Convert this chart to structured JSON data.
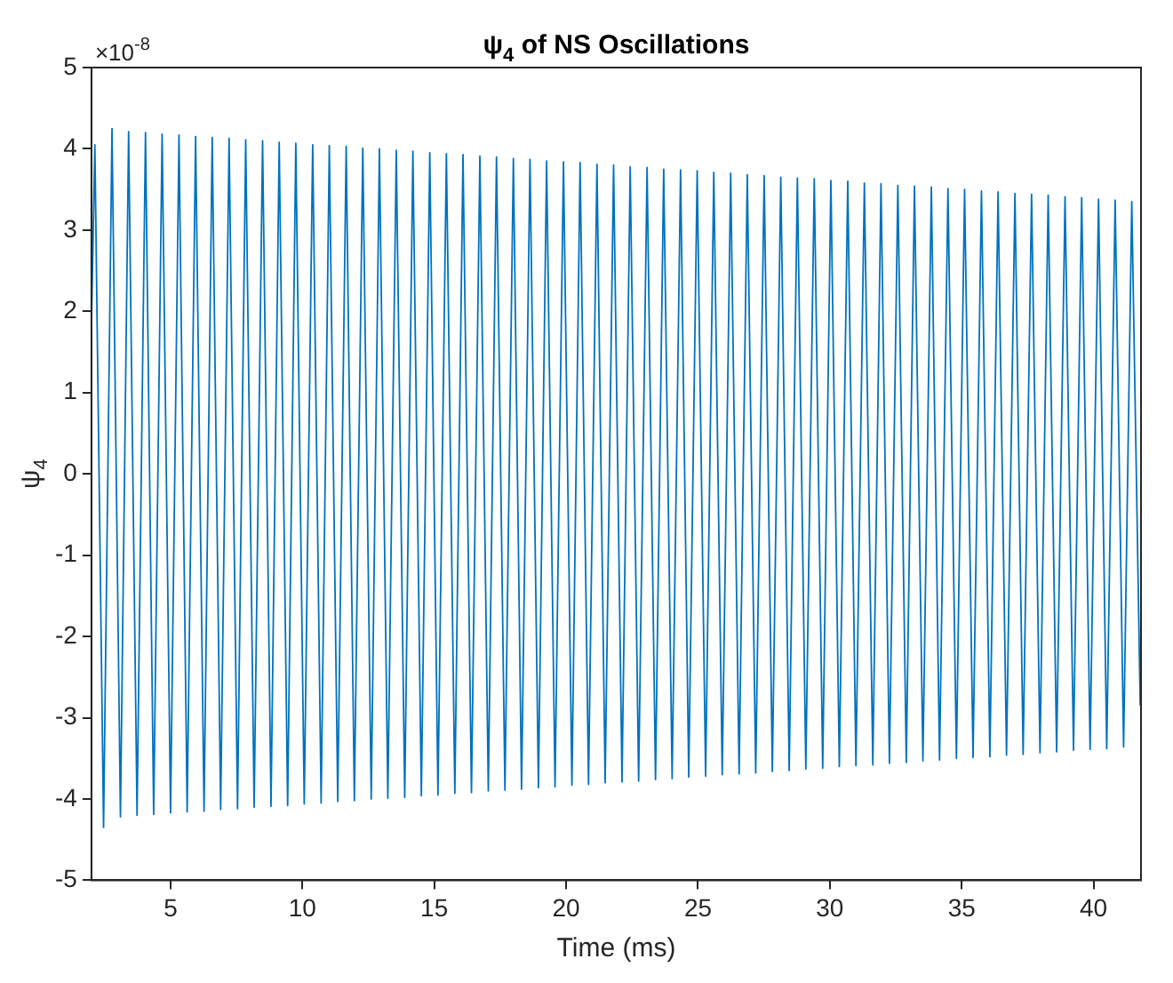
{
  "chart_data": {
    "type": "line",
    "title": "ψ$_{4}$ of NS Oscillations",
    "xlabel": "Time (ms)",
    "ylabel": "ψ$_{4}$",
    "annotations": [
      "×10$^{-8}$"
    ],
    "xlim": [
      2,
      41.8
    ],
    "xticks": [
      5,
      10,
      15,
      20,
      25,
      30,
      35,
      40
    ],
    "ylim": [
      -5,
      5
    ],
    "yticks": [
      -5,
      -4,
      -3,
      -2,
      -1,
      0,
      1,
      2,
      3,
      4,
      5
    ],
    "grid": false,
    "legend": false,
    "marker": "none",
    "line_style": "solid",
    "series": [
      {
        "color": "#0072bd",
        "x": [
          2.0,
          2.13,
          2.46,
          2.78,
          3.1,
          3.41,
          3.73,
          4.05,
          4.36,
          4.68,
          5.0,
          5.32,
          5.63,
          5.95,
          6.27,
          6.58,
          6.9,
          7.22,
          7.54,
          7.85,
          8.17,
          8.49,
          8.81,
          9.12,
          9.44,
          9.75,
          10.07,
          10.39,
          10.71,
          11.02,
          11.34,
          11.66,
          11.97,
          12.29,
          12.61,
          12.92,
          13.24,
          13.56,
          13.88,
          14.19,
          14.51,
          14.83,
          15.14,
          15.46,
          15.78,
          16.09,
          16.41,
          16.73,
          17.05,
          17.36,
          17.68,
          18.0,
          18.31,
          18.63,
          18.95,
          19.26,
          19.58,
          19.9,
          20.22,
          20.53,
          20.85,
          21.17,
          21.48,
          21.8,
          22.12,
          22.43,
          22.75,
          23.07,
          23.39,
          23.7,
          24.02,
          24.34,
          24.65,
          24.97,
          25.29,
          25.6,
          25.92,
          26.24,
          26.56,
          26.87,
          27.19,
          27.51,
          27.82,
          28.14,
          28.46,
          28.77,
          29.09,
          29.41,
          29.73,
          30.04,
          30.36,
          30.68,
          30.99,
          31.31,
          31.63,
          31.94,
          32.26,
          32.58,
          32.9,
          33.21,
          33.53,
          33.85,
          34.16,
          34.48,
          34.8,
          35.11,
          35.43,
          35.75,
          36.07,
          36.38,
          36.7,
          37.02,
          37.33,
          37.65,
          37.97,
          38.28,
          38.6,
          38.92,
          39.24,
          39.55,
          39.87,
          40.19,
          40.5,
          40.82,
          41.14,
          41.45,
          41.77
        ],
        "values": [
          1.8,
          4.05,
          -4.35,
          4.25,
          -4.22,
          4.21,
          -4.2,
          4.2,
          -4.19,
          4.18,
          -4.17,
          4.17,
          -4.16,
          4.15,
          -4.15,
          4.14,
          -4.13,
          4.13,
          -4.12,
          4.11,
          -4.1,
          4.1,
          -4.09,
          4.08,
          -4.08,
          4.07,
          -4.06,
          4.05,
          -4.05,
          4.04,
          -4.03,
          4.03,
          -4.02,
          4.01,
          -4.0,
          4.0,
          -3.99,
          3.98,
          -3.98,
          3.97,
          -3.96,
          3.95,
          -3.95,
          3.94,
          -3.93,
          3.93,
          -3.92,
          3.91,
          -3.9,
          3.9,
          -3.89,
          3.88,
          -3.88,
          3.87,
          -3.86,
          3.85,
          -3.85,
          3.84,
          -3.83,
          3.83,
          -3.82,
          3.81,
          -3.8,
          3.8,
          -3.79,
          3.78,
          -3.78,
          3.77,
          -3.76,
          3.75,
          -3.75,
          3.74,
          -3.73,
          3.73,
          -3.72,
          3.71,
          -3.7,
          3.7,
          -3.69,
          3.68,
          -3.68,
          3.67,
          -3.66,
          3.65,
          -3.65,
          3.64,
          -3.63,
          3.63,
          -3.62,
          3.61,
          -3.6,
          3.6,
          -3.59,
          3.58,
          -3.58,
          3.57,
          -3.56,
          3.55,
          -3.55,
          3.54,
          -3.53,
          3.53,
          -3.52,
          3.51,
          -3.5,
          3.5,
          -3.49,
          3.48,
          -3.48,
          3.47,
          -3.46,
          3.45,
          -3.45,
          3.44,
          -3.43,
          3.43,
          -3.42,
          3.41,
          -3.4,
          3.4,
          -3.39,
          3.38,
          -3.38,
          3.37,
          -3.36,
          3.35,
          -2.85
        ]
      }
    ]
  }
}
